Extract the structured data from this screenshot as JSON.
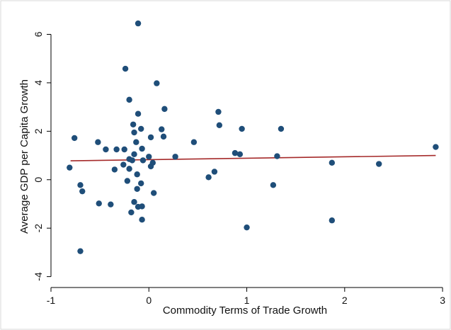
{
  "chart_data": {
    "type": "scatter",
    "title": "",
    "xlabel": "Commodity Terms of Trade Growth",
    "ylabel": "Average GDP per Capita Growth",
    "xlim": [
      -1.0,
      3.05
    ],
    "ylim": [
      -4.45,
      6.95
    ],
    "xticks": [
      -1,
      0,
      1,
      2,
      3
    ],
    "yticks": [
      -4,
      -2,
      0,
      2,
      4,
      6
    ],
    "xtick_labels": [
      "-1",
      "0",
      "1",
      "2",
      "3"
    ],
    "ytick_labels": [
      "-4",
      "-2",
      "0",
      "2",
      "4",
      "6"
    ],
    "grid": false,
    "legend": "none",
    "colors": {
      "point": "#1f4e79",
      "fit_line": "#a52a2a",
      "axis": "#000000",
      "frame": "#d9d9d9"
    },
    "series": [
      {
        "type": "scatter",
        "x": [
          -0.11,
          -0.24,
          0.08,
          -0.2,
          0.16,
          -0.11,
          0.71,
          -0.16,
          -0.08,
          0.13,
          0.72,
          0.95,
          1.35,
          -0.76,
          0.02,
          -0.15,
          0.15,
          -0.13,
          -0.52,
          0.46,
          -0.44,
          -0.33,
          -0.25,
          -0.07,
          -0.15,
          0.27,
          0.88,
          0.93,
          1.31,
          0.0,
          -0.2,
          -0.26,
          -0.17,
          -0.06,
          0.04,
          -0.35,
          0.02,
          -0.2,
          0.67,
          0.61,
          -0.12,
          -0.22,
          -0.08,
          -0.7,
          -0.12,
          -0.68,
          0.05,
          -0.51,
          -0.39,
          -0.15,
          -0.11,
          -0.07,
          -0.18,
          -0.07,
          1.27,
          1.0,
          1.87,
          1.87,
          2.35,
          2.93,
          -0.81,
          -0.7
        ],
        "y": [
          6.45,
          4.58,
          3.98,
          3.3,
          2.92,
          2.72,
          2.8,
          2.28,
          2.1,
          2.08,
          2.25,
          2.1,
          2.1,
          1.72,
          1.75,
          1.95,
          1.78,
          1.55,
          1.55,
          1.55,
          1.25,
          1.25,
          1.25,
          1.28,
          1.05,
          0.95,
          1.1,
          1.05,
          0.97,
          0.95,
          0.85,
          0.62,
          0.8,
          0.8,
          0.7,
          0.42,
          0.55,
          0.45,
          0.33,
          0.1,
          0.22,
          -0.05,
          -0.15,
          -0.22,
          -0.38,
          -0.48,
          -0.55,
          -0.98,
          -1.02,
          -0.92,
          -1.12,
          -1.1,
          -1.35,
          -1.65,
          -0.22,
          -1.97,
          0.7,
          -1.68,
          0.65,
          1.35,
          0.5,
          -2.95
        ]
      },
      {
        "type": "line",
        "x": [
          -0.8,
          2.93
        ],
        "y": [
          0.78,
          1.0
        ]
      }
    ]
  }
}
